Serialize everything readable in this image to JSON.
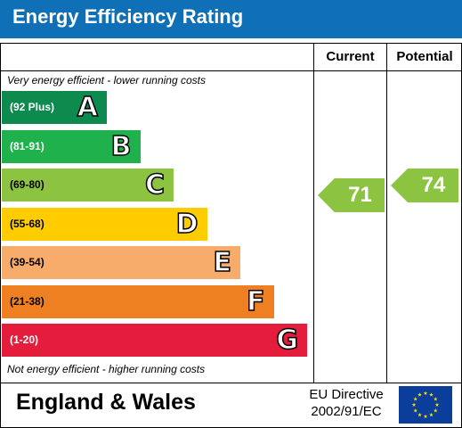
{
  "header": {
    "title": "Energy Efficiency Rating"
  },
  "columns": {
    "current": "Current",
    "potential": "Potential"
  },
  "notes": {
    "top": "Very energy efficient - lower running costs",
    "bottom": "Not energy efficient - higher running costs"
  },
  "chart_data": {
    "type": "bar",
    "categories": [
      "A",
      "B",
      "C",
      "D",
      "E",
      "F",
      "G"
    ],
    "ranges": [
      "(92 Plus)",
      "(81-91)",
      "(69-80)",
      "(55-68)",
      "(39-54)",
      "(21-38)",
      "(1-20)"
    ],
    "colors": [
      "#0d8a4e",
      "#1eb14c",
      "#8cc441",
      "#ffcc00",
      "#f7ac6b",
      "#ef8022",
      "#e41d3c"
    ],
    "current": {
      "value": 71,
      "band": "C",
      "color": "#8cc441"
    },
    "potential": {
      "value": 74,
      "band": "C",
      "color": "#8cc441"
    }
  },
  "footer": {
    "country": "England & Wales",
    "directive_line1": "EU Directive",
    "directive_line2": "2002/91/EC"
  },
  "flag": {
    "icon": "eu-flag-icon",
    "background": "#0a3e9a",
    "stars": "#ffdd00"
  }
}
